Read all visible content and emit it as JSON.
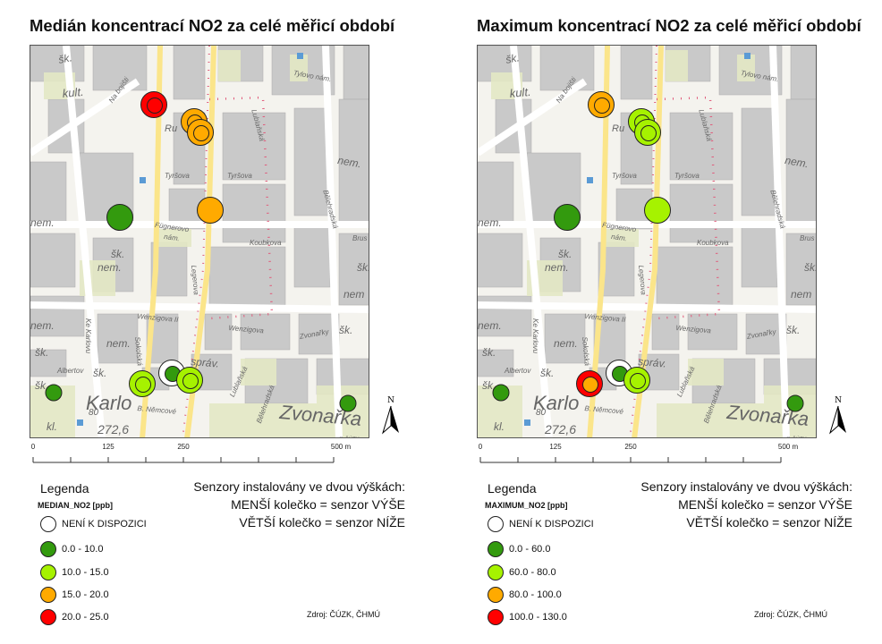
{
  "colors": {
    "na": "#ffffff",
    "c1": "#339a0e",
    "c2": "#a6f200",
    "c3": "#ffaa00",
    "c4": "#ff0000"
  },
  "map_labels": [
    "šk.",
    "kult.",
    "Na bojišti",
    "Ru",
    "Tylovo nám.",
    "Lublaňská",
    "Tyršova",
    "Tyršova",
    "nem.",
    "Bělehradská",
    "nem.",
    "Fügnerovo",
    "nám.",
    "Koubkova",
    "Brus",
    "šk.",
    "nem.",
    "šk.",
    "nem",
    "Legerova",
    "Wenzigova II",
    "Wenzigova",
    "nem.",
    "Ke Karlovu",
    "nem.",
    "Zvonařky",
    "šk.",
    "šk.",
    "Sokolská",
    "správ.",
    "Albertov",
    "šk.",
    "šk.",
    "Karlo",
    "B. Němcové",
    "Lublaňská",
    "Bělehradská",
    "Zvonařka",
    "kl.",
    "80",
    "272,6",
    "© ČÚZK"
  ],
  "panels": [
    {
      "title": "Medián koncentrací NO2 za celé měřicí období",
      "legend_field": "MEDIAN_NO2 [ppb]",
      "legend": [
        {
          "label": "NENÍ K DISPOZICI",
          "color_key": "na"
        },
        {
          "label": "0.0 - 10.0",
          "color_key": "c1"
        },
        {
          "label": "10.0 - 15.0",
          "color_key": "c2"
        },
        {
          "label": "15.0 - 20.0",
          "color_key": "c3"
        },
        {
          "label": "20.0 - 25.0",
          "color_key": "c4"
        }
      ],
      "sensors": [
        {
          "lower": "c4",
          "upper": "c4"
        },
        {
          "lower": "c3",
          "upper": "c3"
        },
        {
          "lower": "c3",
          "upper": "c3"
        },
        {
          "lower": "c3",
          "upper": null
        },
        {
          "lower": "c1",
          "upper": null
        },
        {
          "lower": "na",
          "upper": "c1"
        },
        {
          "lower": "c2",
          "upper": "c2"
        },
        {
          "lower": "c2",
          "upper": "c2"
        },
        {
          "lower": null,
          "upper": "c1"
        },
        {
          "lower": null,
          "upper": "c1"
        }
      ]
    },
    {
      "title": "Maximum koncentrací NO2 za celé měřicí období",
      "legend_field": "MAXIMUM_NO2 [ppb]",
      "legend": [
        {
          "label": "NENÍ K DISPOZICI",
          "color_key": "na"
        },
        {
          "label": "0.0 - 60.0",
          "color_key": "c1"
        },
        {
          "label": "60.0 - 80.0",
          "color_key": "c2"
        },
        {
          "label": "80.0 - 100.0",
          "color_key": "c3"
        },
        {
          "label": "100.0 - 130.0",
          "color_key": "c4"
        }
      ],
      "sensors": [
        {
          "lower": "c3",
          "upper": "c3"
        },
        {
          "lower": "c2",
          "upper": "c2"
        },
        {
          "lower": "c2",
          "upper": "c2"
        },
        {
          "lower": "c2",
          "upper": null
        },
        {
          "lower": "c1",
          "upper": null
        },
        {
          "lower": "na",
          "upper": "c1"
        },
        {
          "lower": "c4",
          "upper": "c3"
        },
        {
          "lower": "c2",
          "upper": "c2"
        },
        {
          "lower": null,
          "upper": "c1"
        },
        {
          "lower": null,
          "upper": "c1"
        }
      ]
    }
  ],
  "scale": {
    "ticks": [
      "0",
      "125",
      "250",
      "500 m"
    ],
    "tick_values": [
      0,
      125,
      250,
      500
    ],
    "max": 500
  },
  "north_label": "N",
  "note": {
    "line1": "Senzory instalovány ve dvou výškách:",
    "line2": "MENŠÍ kolečko = senzor VÝŠE",
    "line3": "VĚTŠÍ kolečko = senzor NÍŽE"
  },
  "source": "Zdroj: ČÚZK, ČHMÚ"
}
